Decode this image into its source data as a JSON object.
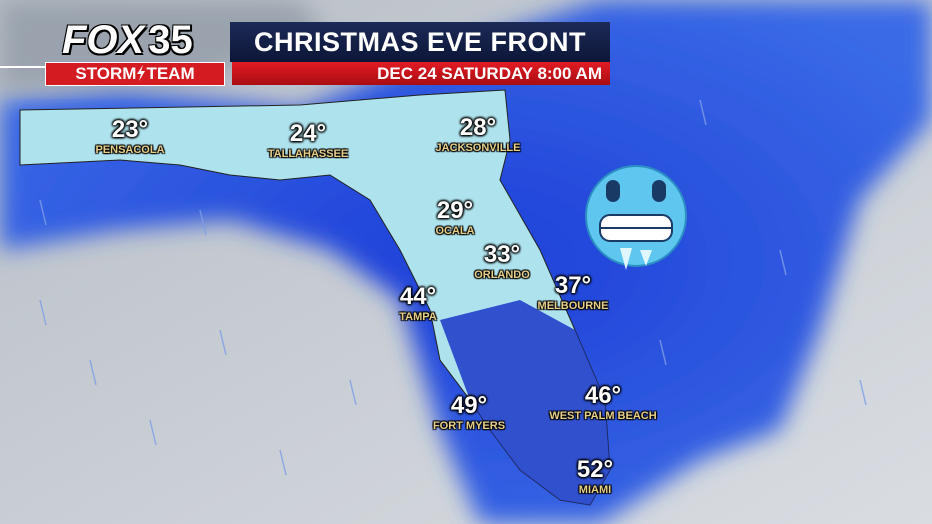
{
  "logo": {
    "brand": "FOX",
    "channel": "35",
    "team": "STORM",
    "team2": "TEAM"
  },
  "header": {
    "title": "CHRISTMAS EVE FRONT",
    "subtitle": "DEC 24 SATURDAY 8:00 AM"
  },
  "cities": [
    {
      "temp": "23°",
      "name": "PENSACOLA"
    },
    {
      "temp": "24°",
      "name": "TALLAHASSEE"
    },
    {
      "temp": "28°",
      "name": "JACKSONVILLE"
    },
    {
      "temp": "29°",
      "name": "OCALA"
    },
    {
      "temp": "33°",
      "name": "ORLANDO"
    },
    {
      "temp": "37°",
      "name": "MELBOURNE"
    },
    {
      "temp": "44°",
      "name": "TAMPA"
    },
    {
      "temp": "49°",
      "name": "FORT MYERS"
    },
    {
      "temp": "46°",
      "name": "WEST PALM BEACH"
    },
    {
      "temp": "52°",
      "name": "MIAMI"
    }
  ]
}
